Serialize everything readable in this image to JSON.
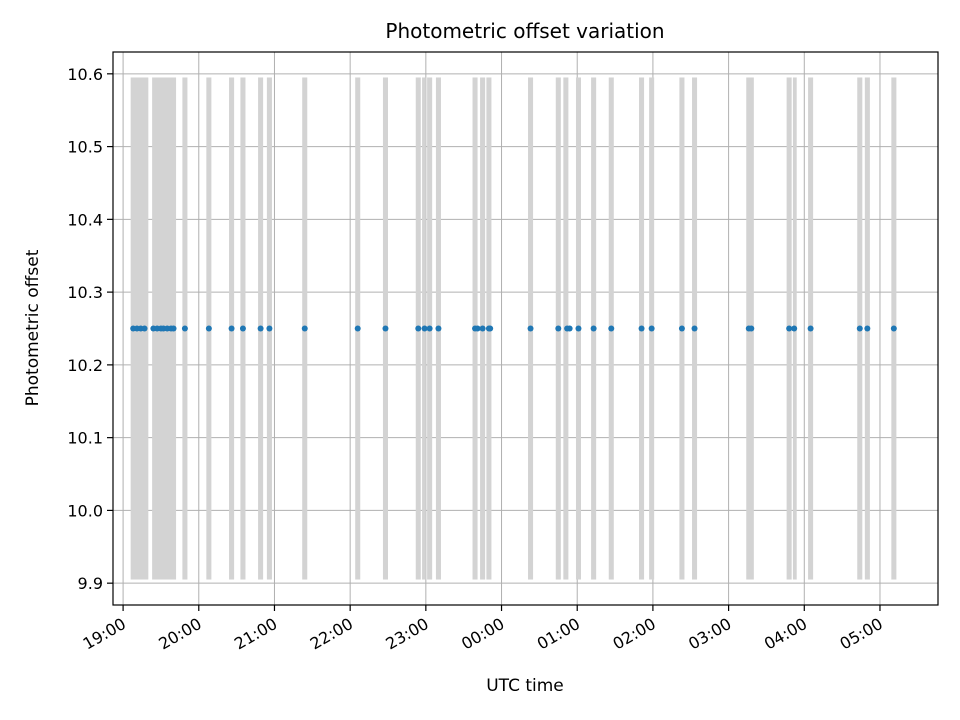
{
  "chart_data": {
    "type": "scatter",
    "title": "Photometric offset variation",
    "xlabel": "UTC time",
    "ylabel": "Photometric offset",
    "x_axis": "time",
    "xlim": [
      "18:52",
      "05:46"
    ],
    "ylim": [
      9.87,
      10.63
    ],
    "y_ticks": [
      9.9,
      10.0,
      10.1,
      10.2,
      10.3,
      10.4,
      10.5,
      10.6
    ],
    "x_ticks": [
      "19:00",
      "20:00",
      "21:00",
      "22:00",
      "23:00",
      "00:00",
      "01:00",
      "02:00",
      "03:00",
      "04:00",
      "05:00"
    ],
    "grid": true,
    "colors": {
      "points": "#1f77b4",
      "bands": "#d3d3d3",
      "grid": "#b0b0b0"
    },
    "offset_value": 10.25,
    "band_range": [
      9.905,
      10.595
    ],
    "shaded_intervals": [
      [
        "19:06",
        "19:20"
      ],
      [
        "19:23",
        "19:42"
      ],
      [
        "19:47",
        "19:51"
      ],
      [
        "20:06",
        "20:10"
      ],
      [
        "20:24",
        "20:28"
      ],
      [
        "20:33",
        "20:37"
      ],
      [
        "20:47",
        "20:51"
      ],
      [
        "20:54",
        "20:58"
      ],
      [
        "21:22",
        "21:26"
      ],
      [
        "22:04",
        "22:08"
      ],
      [
        "22:26",
        "22:30"
      ],
      [
        "22:52",
        "22:56"
      ],
      [
        "22:57",
        "23:00"
      ],
      [
        "23:01",
        "23:05"
      ],
      [
        "23:08",
        "23:12"
      ],
      [
        "23:37",
        "23:41"
      ],
      [
        "23:43",
        "23:47"
      ],
      [
        "23:48",
        "23:52"
      ],
      [
        "00:21",
        "00:25"
      ],
      [
        "00:43",
        "00:47"
      ],
      [
        "00:49",
        "00:53"
      ],
      [
        "00:59",
        "01:03"
      ],
      [
        "01:11",
        "01:15"
      ],
      [
        "01:25",
        "01:29"
      ],
      [
        "01:49",
        "01:53"
      ],
      [
        "01:57",
        "02:01"
      ],
      [
        "02:21",
        "02:25"
      ],
      [
        "02:31",
        "02:35"
      ],
      [
        "03:14",
        "03:20"
      ],
      [
        "03:46",
        "03:50"
      ],
      [
        "03:51",
        "03:54"
      ],
      [
        "04:03",
        "04:07"
      ],
      [
        "04:42",
        "04:46"
      ],
      [
        "04:48",
        "04:52"
      ],
      [
        "05:09",
        "05:13"
      ]
    ],
    "points": [
      "19:08",
      "19:11",
      "19:14",
      "19:17",
      "19:24",
      "19:27",
      "19:30",
      "19:32",
      "19:35",
      "19:38",
      "19:40",
      "19:49",
      "20:08",
      "20:26",
      "20:35",
      "20:49",
      "20:56",
      "21:24",
      "22:06",
      "22:28",
      "22:54",
      "22:59",
      "23:03",
      "23:10",
      "23:39",
      "23:41",
      "23:45",
      "23:50",
      "23:51",
      "00:23",
      "00:45",
      "00:52",
      "00:54",
      "01:01",
      "01:13",
      "01:27",
      "01:51",
      "01:59",
      "02:23",
      "02:33",
      "03:16",
      "03:18",
      "03:48",
      "03:52",
      "04:05",
      "04:44",
      "04:50",
      "05:11"
    ]
  }
}
